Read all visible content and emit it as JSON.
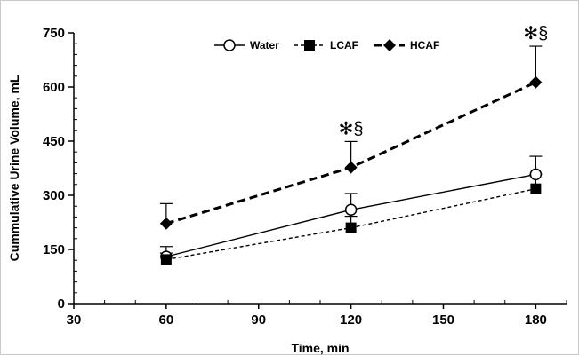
{
  "chart_data": {
    "type": "line",
    "xlabel": "Time, min",
    "ylabel": "Cummulative Urine Volume, mL",
    "xlim": [
      30,
      190
    ],
    "ylim": [
      0,
      750
    ],
    "x_ticks": [
      "30",
      "60",
      "90",
      "120",
      "150",
      "180"
    ],
    "y_ticks": [
      "0",
      "150",
      "300",
      "450",
      "600",
      "750"
    ],
    "x": [
      60,
      120,
      180
    ],
    "legend_position": "top-center",
    "grid": false,
    "series": [
      {
        "name": "Water",
        "values": [
          130,
          260,
          358
        ],
        "errors": [
          28,
          45,
          50
        ],
        "marker": "open-circle",
        "line": "solid",
        "color": "#000000"
      },
      {
        "name": "LCAF",
        "values": [
          122,
          210,
          318
        ],
        "errors": [
          18,
          32,
          40
        ],
        "marker": "filled-square",
        "line": "dashed",
        "color": "#000000"
      },
      {
        "name": "HCAF",
        "values": [
          222,
          377,
          613
        ],
        "errors": [
          55,
          72,
          100
        ],
        "marker": "filled-diamond",
        "line": "heavy-dashed",
        "color": "#000000"
      }
    ],
    "annotations": [
      {
        "x": 120,
        "text": "✻§"
      },
      {
        "x": 180,
        "text": "✻§"
      }
    ]
  }
}
